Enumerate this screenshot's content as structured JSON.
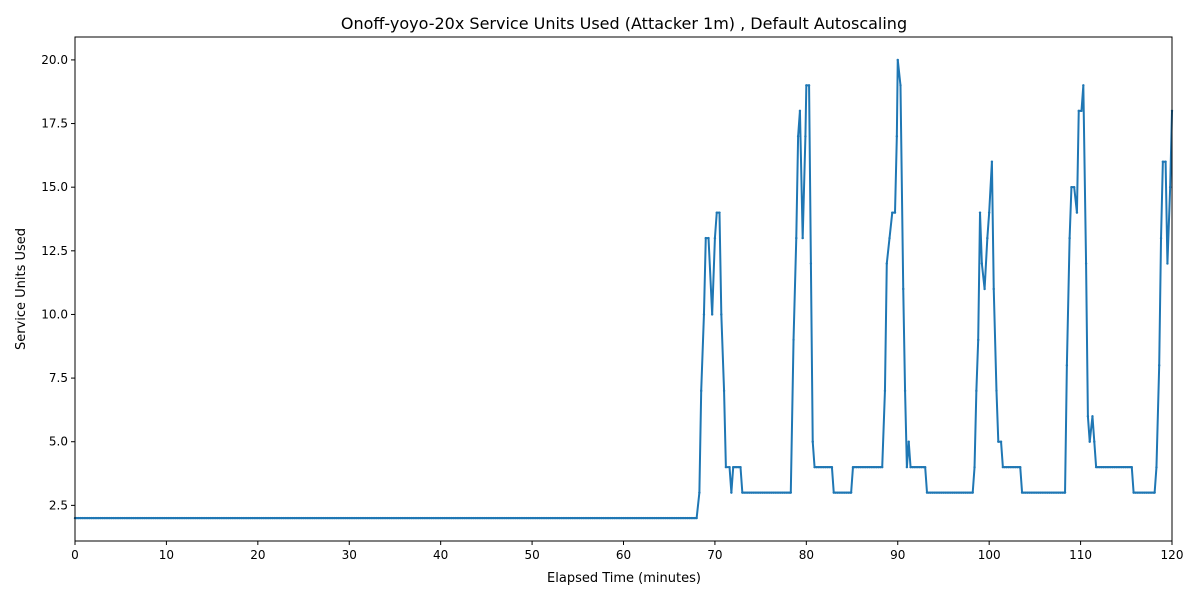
{
  "chart_data": {
    "type": "line",
    "title": "Onoff-yoyo-20x Service Units Used (Attacker 1m) , Default Autoscaling",
    "xlabel": "Elapsed Time (minutes)",
    "ylabel": "Service Units Used",
    "xlim": [
      0,
      120
    ],
    "ylim": [
      1.1,
      20.9
    ],
    "xticks": [
      0,
      10,
      20,
      30,
      40,
      50,
      60,
      70,
      80,
      90,
      100,
      110,
      120
    ],
    "xtick_labels": [
      "0",
      "10",
      "20",
      "30",
      "40",
      "50",
      "60",
      "70",
      "80",
      "90",
      "100",
      "110",
      "120"
    ],
    "yticks": [
      2.5,
      5.0,
      7.5,
      10.0,
      12.5,
      15.0,
      17.5,
      20.0
    ],
    "ytick_labels": [
      "2.5",
      "5.0",
      "7.5",
      "10.0",
      "12.5",
      "15.0",
      "17.5",
      "20.0"
    ],
    "grid": false,
    "color": "#1f77b4",
    "series": [
      {
        "values": [
          [
            0,
            2
          ],
          [
            68,
            2
          ],
          [
            68.3,
            3
          ],
          [
            68.5,
            7
          ],
          [
            68.8,
            10
          ],
          [
            69.0,
            13
          ],
          [
            69.3,
            13
          ],
          [
            69.7,
            10
          ],
          [
            70.0,
            13
          ],
          [
            70.2,
            14
          ],
          [
            70.5,
            14
          ],
          [
            70.7,
            10
          ],
          [
            71.0,
            7
          ],
          [
            71.2,
            4
          ],
          [
            71.6,
            4
          ],
          [
            71.8,
            3
          ],
          [
            72.0,
            4
          ],
          [
            72.8,
            4
          ],
          [
            73.0,
            3
          ],
          [
            78.3,
            3
          ],
          [
            78.6,
            9
          ],
          [
            78.9,
            13
          ],
          [
            79.1,
            17
          ],
          [
            79.3,
            18
          ],
          [
            79.6,
            13
          ],
          [
            79.9,
            17
          ],
          [
            80.0,
            19
          ],
          [
            80.3,
            19
          ],
          [
            80.5,
            12
          ],
          [
            80.7,
            5
          ],
          [
            80.9,
            4
          ],
          [
            82.8,
            4
          ],
          [
            83.0,
            3
          ],
          [
            84.9,
            3
          ],
          [
            85.1,
            4
          ],
          [
            88.3,
            4
          ],
          [
            88.6,
            7
          ],
          [
            88.8,
            12
          ],
          [
            89.1,
            13
          ],
          [
            89.4,
            14
          ],
          [
            89.7,
            14
          ],
          [
            89.9,
            17
          ],
          [
            90.0,
            20
          ],
          [
            90.3,
            19
          ],
          [
            90.6,
            11
          ],
          [
            90.8,
            7
          ],
          [
            91.0,
            4
          ],
          [
            91.2,
            5
          ],
          [
            91.4,
            4
          ],
          [
            93.0,
            4
          ],
          [
            93.2,
            3
          ],
          [
            98.2,
            3
          ],
          [
            98.4,
            4
          ],
          [
            98.6,
            7
          ],
          [
            98.8,
            9
          ],
          [
            99.0,
            14
          ],
          [
            99.2,
            12
          ],
          [
            99.5,
            11
          ],
          [
            99.8,
            13
          ],
          [
            100.0,
            14
          ],
          [
            100.3,
            16
          ],
          [
            100.5,
            11
          ],
          [
            100.8,
            7
          ],
          [
            101.0,
            5
          ],
          [
            101.3,
            5
          ],
          [
            101.5,
            4
          ],
          [
            103.4,
            4
          ],
          [
            103.6,
            3
          ],
          [
            108.3,
            3
          ],
          [
            108.5,
            8
          ],
          [
            108.8,
            13
          ],
          [
            109.0,
            15
          ],
          [
            109.3,
            15
          ],
          [
            109.6,
            14
          ],
          [
            109.8,
            18
          ],
          [
            110.1,
            18
          ],
          [
            110.3,
            19
          ],
          [
            110.6,
            12
          ],
          [
            110.8,
            6
          ],
          [
            111.0,
            5
          ],
          [
            111.3,
            6
          ],
          [
            111.5,
            5
          ],
          [
            111.7,
            4
          ],
          [
            115.6,
            4
          ],
          [
            115.8,
            3
          ],
          [
            118.1,
            3
          ],
          [
            118.3,
            4
          ],
          [
            118.6,
            8
          ],
          [
            118.8,
            13
          ],
          [
            119.0,
            16
          ],
          [
            119.3,
            16
          ],
          [
            119.5,
            12
          ],
          [
            119.8,
            15
          ],
          [
            120.0,
            18
          ]
        ]
      }
    ]
  }
}
